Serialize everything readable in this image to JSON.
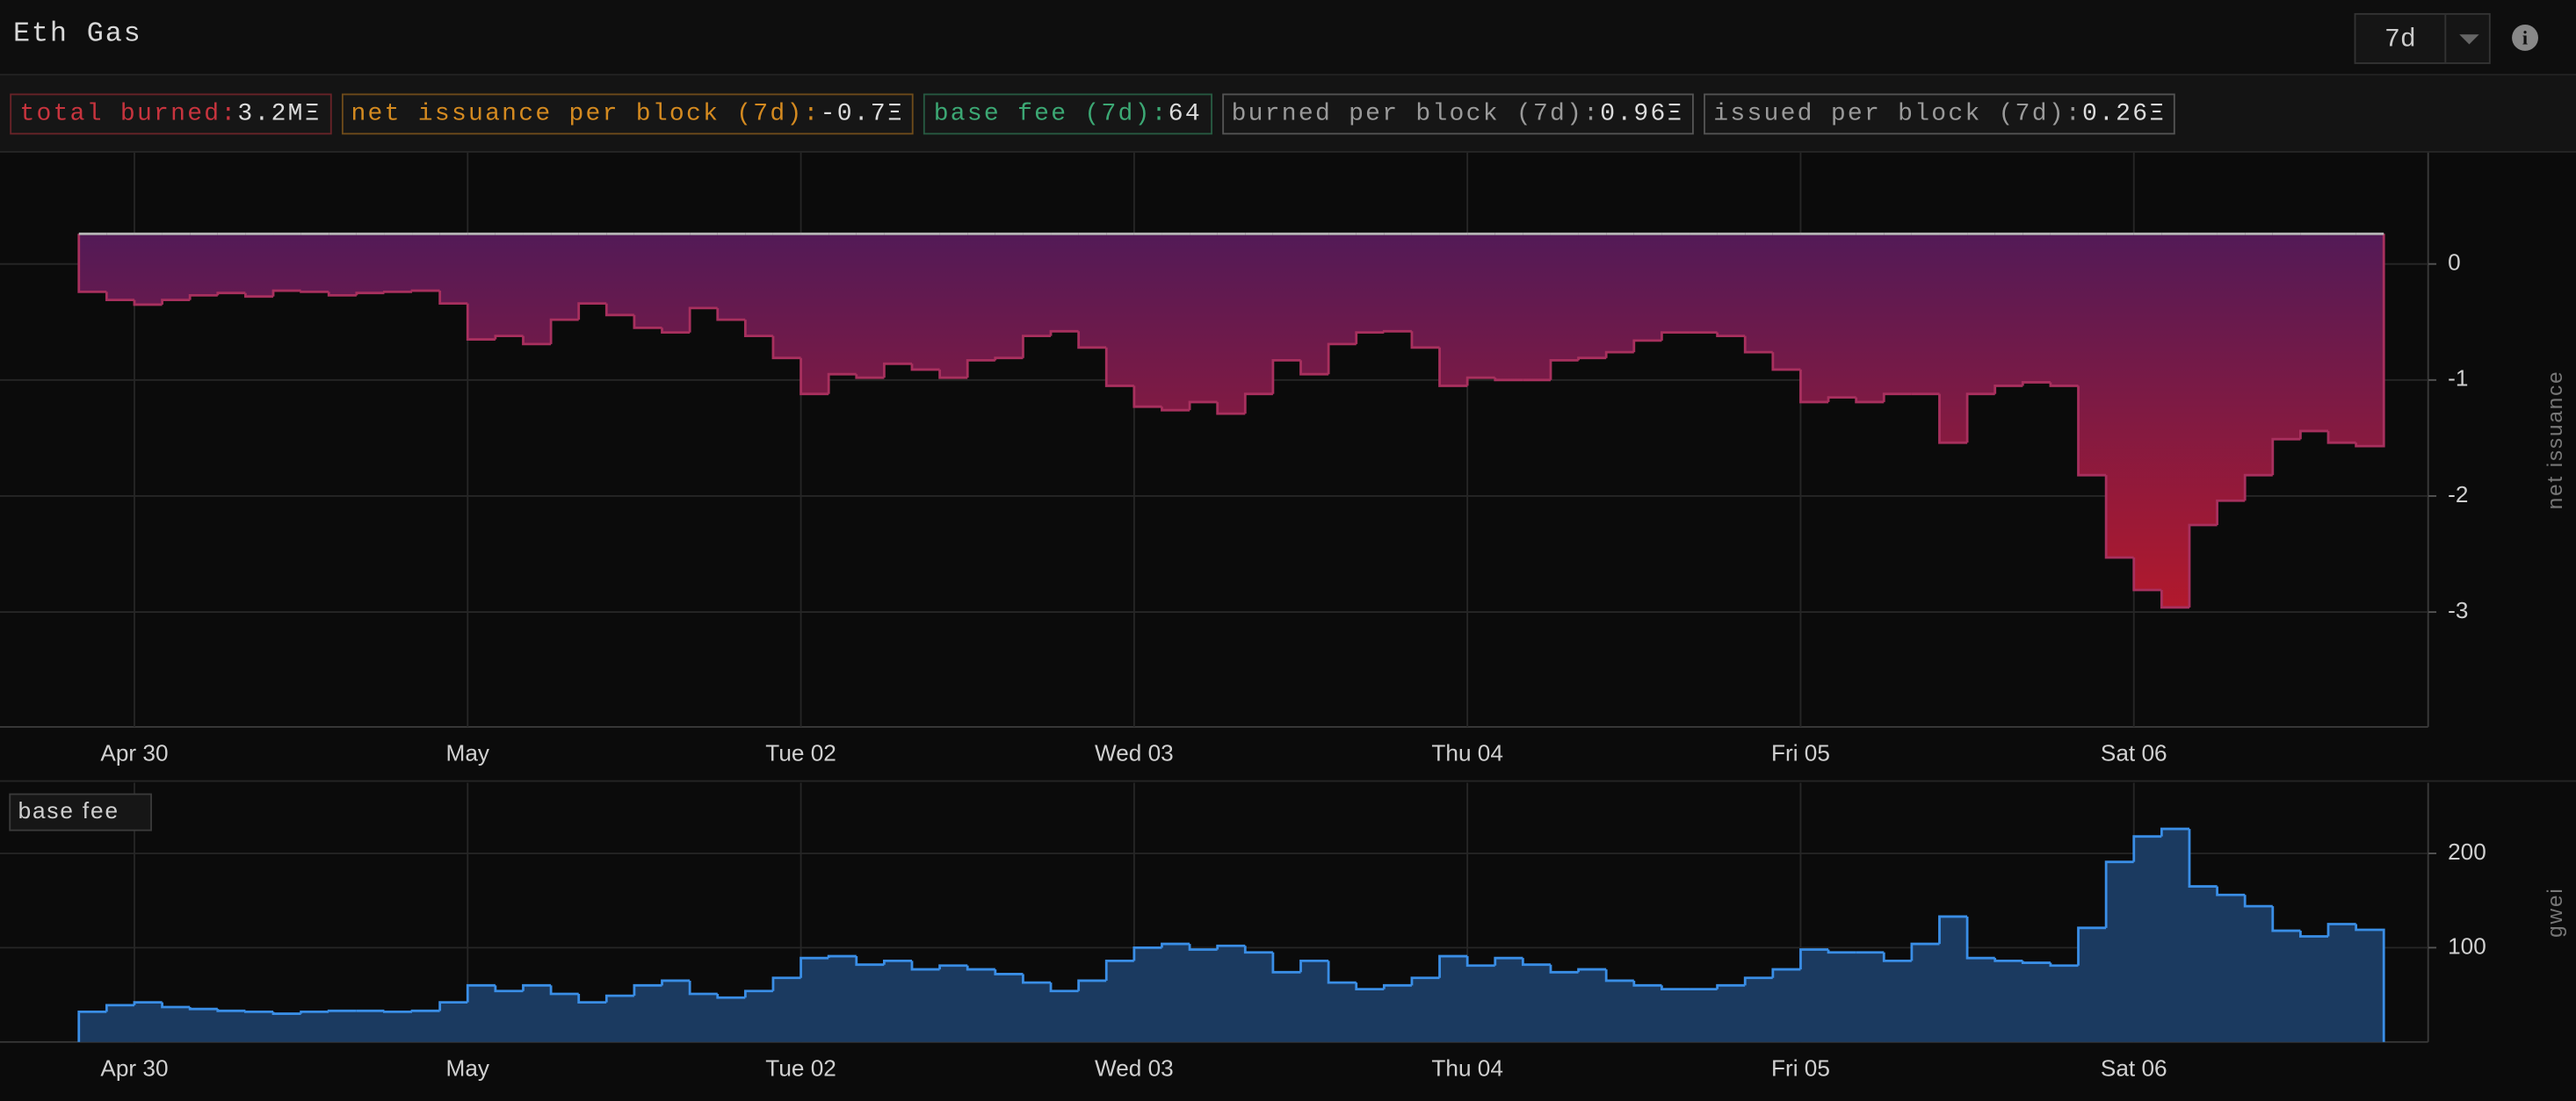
{
  "header": {
    "title": "Eth Gas",
    "range": "7d"
  },
  "stats": [
    {
      "label": "total burned:",
      "value": "3.2MΞ",
      "color": "#c8343e"
    },
    {
      "label": "net issuance per block (7d):",
      "value": "-0.7Ξ",
      "color": "#d48a20"
    },
    {
      "label": "base fee (7d):",
      "value": "64",
      "color": "#3ca874"
    },
    {
      "label": "burned per block (7d):",
      "value": "0.96Ξ",
      "color": "#9a9a9a"
    },
    {
      "label": "issued per block (7d):",
      "value": "0.26Ξ",
      "color": "#9a9a9a"
    }
  ],
  "chart_data": [
    {
      "type": "step-area",
      "ylabel": "net issuance",
      "categories": [
        null,
        null,
        "Apr 30",
        null,
        null,
        null,
        null,
        null,
        null,
        null,
        null,
        null,
        null,
        null,
        "May",
        null,
        null,
        null,
        null,
        null,
        null,
        null,
        null,
        null,
        null,
        null,
        "Tue 02",
        null,
        null,
        null,
        null,
        null,
        null,
        null,
        null,
        null,
        null,
        null,
        "Wed 03",
        null,
        null,
        null,
        null,
        null,
        null,
        null,
        null,
        null,
        null,
        null,
        "Thu 04",
        null,
        null,
        null,
        null,
        null,
        null,
        null,
        null,
        null,
        null,
        null,
        "Fri 05",
        null,
        null,
        null,
        null,
        null,
        null,
        null,
        null,
        null,
        null,
        null,
        "Sat 06",
        null,
        null,
        null,
        null,
        null,
        null,
        null,
        null
      ],
      "values": [
        -0.24,
        -0.31,
        -0.35,
        -0.31,
        -0.27,
        -0.25,
        -0.28,
        -0.23,
        -0.24,
        -0.27,
        -0.25,
        -0.24,
        -0.23,
        -0.34,
        -0.65,
        -0.62,
        -0.69,
        -0.48,
        -0.34,
        -0.44,
        -0.55,
        -0.59,
        -0.38,
        -0.48,
        -0.62,
        -0.81,
        -1.12,
        -0.95,
        -0.98,
        -0.86,
        -0.91,
        -0.98,
        -0.83,
        -0.81,
        -0.62,
        -0.58,
        -0.72,
        -1.05,
        -1.23,
        -1.26,
        -1.19,
        -1.29,
        -1.12,
        -0.83,
        -0.95,
        -0.69,
        -0.59,
        -0.58,
        -0.72,
        -1.05,
        -0.98,
        -1.0,
        -1.0,
        -0.83,
        -0.81,
        -0.76,
        -0.66,
        -0.59,
        -0.59,
        -0.62,
        -0.76,
        -0.91,
        -1.19,
        -1.15,
        -1.19,
        -1.12,
        -1.12,
        -1.54,
        -1.12,
        -1.05,
        -1.02,
        -1.05,
        -1.82,
        -2.53,
        -2.81,
        -2.96,
        -2.25,
        -2.04,
        -1.82,
        -1.51,
        -1.44,
        -1.54,
        -1.57
      ],
      "base_values": [
        0.26,
        0.26,
        0.26,
        0.26,
        0.26,
        0.26,
        0.26,
        0.26,
        0.26,
        0.26,
        0.26,
        0.26,
        0.26,
        0.26,
        0.26,
        0.26,
        0.26,
        0.26,
        0.26,
        0.26,
        0.26,
        0.26,
        0.26,
        0.26,
        0.26,
        0.26,
        0.26,
        0.26,
        0.26,
        0.26,
        0.26,
        0.26,
        0.26,
        0.26,
        0.26,
        0.26,
        0.26,
        0.26,
        0.26,
        0.26,
        0.26,
        0.26,
        0.26,
        0.26,
        0.26,
        0.26,
        0.26,
        0.26,
        0.26,
        0.26,
        0.26,
        0.26,
        0.26,
        0.26,
        0.26,
        0.26,
        0.26,
        0.26,
        0.26,
        0.26,
        0.26,
        0.26,
        0.26,
        0.26,
        0.26,
        0.26,
        0.26,
        0.26,
        0.26,
        0.26,
        0.26,
        0.26,
        0.26,
        0.26,
        0.26,
        0.26,
        0.26,
        0.26,
        0.26,
        0.26,
        0.26,
        0.26,
        0.26
      ],
      "base_color": "#b4b4b4",
      "gradient": [
        "#3e1b60",
        "#d0181f"
      ],
      "color": "#a8305e",
      "ylim": [
        -3.99,
        0.96
      ],
      "yticks": [
        0,
        -1,
        -2,
        -3
      ],
      "grid": true
    },
    {
      "type": "step-area",
      "ylabel": "gwei",
      "legend": "base fee",
      "categories": [
        null,
        null,
        "Apr 30",
        null,
        null,
        null,
        null,
        null,
        null,
        null,
        null,
        null,
        null,
        null,
        "May",
        null,
        null,
        null,
        null,
        null,
        null,
        null,
        null,
        null,
        null,
        null,
        "Tue 02",
        null,
        null,
        null,
        null,
        null,
        null,
        null,
        null,
        null,
        null,
        null,
        "Wed 03",
        null,
        null,
        null,
        null,
        null,
        null,
        null,
        null,
        null,
        null,
        null,
        "Thu 04",
        null,
        null,
        null,
        null,
        null,
        null,
        null,
        null,
        null,
        null,
        null,
        "Fri 05",
        null,
        null,
        null,
        null,
        null,
        null,
        null,
        null,
        null,
        null,
        null,
        "Sat 06",
        null,
        null,
        null,
        null,
        null,
        null,
        null,
        null
      ],
      "values": [
        32,
        39,
        42,
        37,
        35,
        33,
        32,
        30,
        32,
        33,
        33,
        32,
        33,
        42,
        60,
        54,
        60,
        51,
        42,
        49,
        60,
        65,
        51,
        47,
        54,
        68,
        89,
        91,
        82,
        86,
        77,
        81,
        77,
        72,
        63,
        54,
        65,
        86,
        100,
        104,
        98,
        102,
        95,
        74,
        86,
        63,
        56,
        60,
        68,
        91,
        81,
        89,
        82,
        74,
        77,
        65,
        60,
        56,
        56,
        60,
        68,
        77,
        98,
        95,
        95,
        86,
        104,
        133,
        89,
        86,
        84,
        81,
        121,
        191,
        218,
        226,
        165,
        156,
        144,
        118,
        112,
        125,
        119
      ],
      "gradient": [
        "#1b3a60",
        "#1b3a60"
      ],
      "color": "#3a8ee6",
      "ylim": [
        0,
        275
      ],
      "yticks": [
        100,
        200
      ],
      "grid": true
    }
  ]
}
